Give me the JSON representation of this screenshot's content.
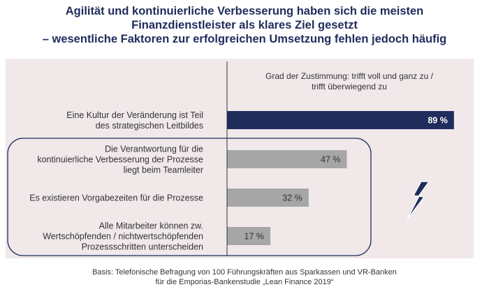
{
  "title": {
    "line1": "Agilität und kontinuierliche Verbesserung haben sich die meisten",
    "line2": "Finanzdienstleister als klares Ziel gesetzt",
    "line3": "– wesentliche Faktoren zur erfolgreichen Umsetzung fehlen jedoch häufig"
  },
  "chart_data": {
    "type": "bar",
    "orientation": "horizontal",
    "value_header": [
      "Grad der Zustimmung: trifft voll und ganz zu /",
      "trifft überwiegend zu"
    ],
    "categories": [
      [
        "Eine Kultur der Veränderung ist Teil",
        "des strategischen Leitbildes"
      ],
      [
        "Die Verantwortung für die",
        "kontinuierliche Verbesserung der Prozesse",
        "liegt beim Teamleiter"
      ],
      [
        "Es existieren Vorgabezeiten für die Prozesse"
      ],
      [
        "Alle Mitarbeiter können zw.",
        "Wertschöpfenden / nichtwertschöpfenden",
        "Prozessschritten unterscheiden"
      ]
    ],
    "values": [
      89,
      47,
      32,
      17
    ],
    "value_labels": [
      "89 %",
      "47 %",
      "32 %",
      "17 %"
    ],
    "bar_colors": [
      "#1f2c5c",
      "#a6a6a6",
      "#a6a6a6",
      "#a6a6a6"
    ],
    "xlim": [
      0,
      100
    ],
    "highlight_group": [
      1,
      2,
      3
    ],
    "accent_icon": "lightning-icon"
  },
  "colors": {
    "title": "#1f2c5c",
    "accent": "#1f2c5c",
    "panel": "#f0e8e9",
    "neutral_bar": "#a6a6a6"
  },
  "footnote": {
    "line1": "Basis: Telefonische Befragung von 100 Führungskräften aus Sparkassen und VR-Banken",
    "line2": "für die Emporias-Bankenstudie „Lean Finance 2019“"
  }
}
